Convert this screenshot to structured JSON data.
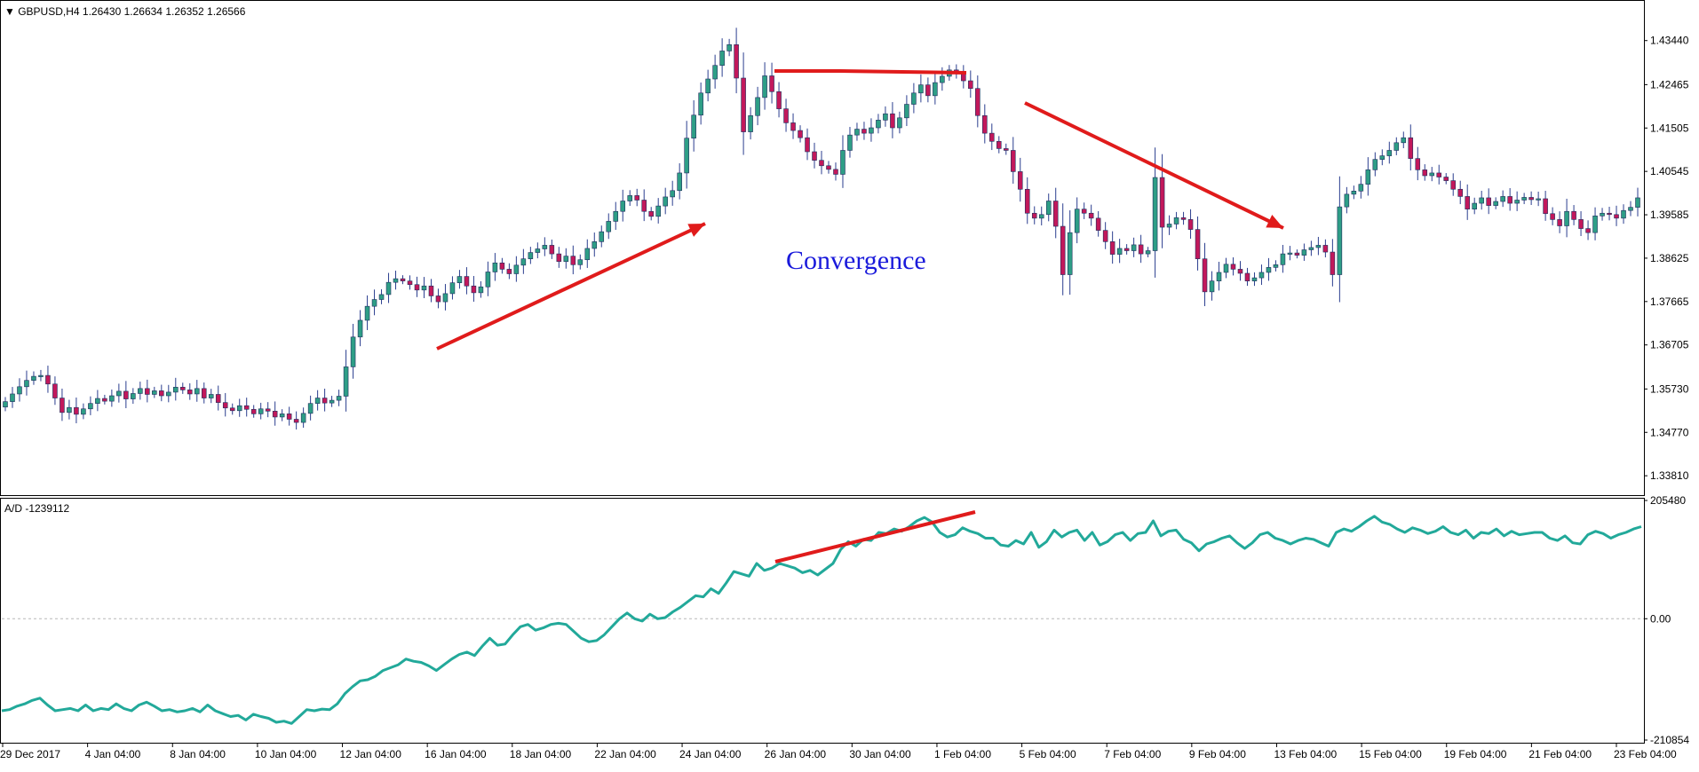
{
  "colors": {
    "bull": "#2e9e86",
    "bear": "#c2185b",
    "wick": "#2b3e8f",
    "ad_line": "#22a99a",
    "annotation": "#e01b1b",
    "convergence_text": "#1a1adb",
    "frame": "#000000",
    "zero_line": "#b8b8b8"
  },
  "chart_data": [
    {
      "type": "candlestick",
      "symbol_info": "▼ GBPUSD,H4  1.26430 1.26634 1.26352 1.26566",
      "ylim": [
        1.3342,
        1.4422
      ],
      "y_ticks": [
        "1.43440",
        "1.42465",
        "1.41505",
        "1.40545",
        "1.39585",
        "1.38625",
        "1.37665",
        "1.36705",
        "1.35730",
        "1.34770",
        "1.33810"
      ],
      "x_ticks": [
        "29 Dec 2017",
        "4 Jan 04:00",
        "8 Jan 04:00",
        "10 Jan 04:00",
        "12 Jan 04:00",
        "16 Jan 04:00",
        "18 Jan 04:00",
        "22 Jan 04:00",
        "24 Jan 04:00",
        "26 Jan 04:00",
        "30 Jan 04:00",
        "1 Feb 04:00",
        "5 Feb 04:00",
        "7 Feb 04:00",
        "9 Feb 04:00",
        "13 Feb 04:00",
        "15 Feb 04:00",
        "19 Feb 04:00",
        "21 Feb 04:00",
        "23 Feb 04:00"
      ],
      "closes": [
        1.3545,
        1.3562,
        1.3578,
        1.3592,
        1.3601,
        1.3603,
        1.3584,
        1.3553,
        1.3521,
        1.3532,
        1.3517,
        1.3529,
        1.3541,
        1.3552,
        1.3546,
        1.3558,
        1.3568,
        1.3551,
        1.3563,
        1.3574,
        1.3561,
        1.3569,
        1.3558,
        1.3566,
        1.3577,
        1.3571,
        1.3562,
        1.3574,
        1.3553,
        1.3561,
        1.3543,
        1.3531,
        1.3525,
        1.3536,
        1.3528,
        1.3518,
        1.3529,
        1.3524,
        1.3511,
        1.3518,
        1.3506,
        1.3499,
        1.3519,
        1.3541,
        1.3553,
        1.3542,
        1.3548,
        1.3557,
        1.3622,
        1.3688,
        1.3725,
        1.3756,
        1.3771,
        1.3782,
        1.3809,
        1.3817,
        1.3812,
        1.3804,
        1.3792,
        1.3801,
        1.3779,
        1.3766,
        1.3784,
        1.3808,
        1.3822,
        1.3801,
        1.3786,
        1.3799,
        1.3832,
        1.3852,
        1.3838,
        1.3828,
        1.3847,
        1.3861,
        1.3875,
        1.3883,
        1.3891,
        1.3872,
        1.3855,
        1.3867,
        1.3848,
        1.3859,
        1.3884,
        1.3899,
        1.3921,
        1.3944,
        1.3966,
        1.3989,
        1.4001,
        1.3991,
        1.3966,
        1.3955,
        1.3978,
        1.3998,
        1.4012,
        1.4051,
        1.4128,
        1.4179,
        1.4228,
        1.4259,
        1.4289,
        1.4321,
        1.4335,
        1.4261,
        1.4142,
        1.4178,
        1.4218,
        1.4266,
        1.4231,
        1.4193,
        1.4162,
        1.4145,
        1.4129,
        1.4098,
        1.4079,
        1.4067,
        1.4059,
        1.4048,
        1.4101,
        1.4135,
        1.4148,
        1.4139,
        1.4151,
        1.4168,
        1.4182,
        1.4151,
        1.4173,
        1.4203,
        1.4228,
        1.4246,
        1.4222,
        1.4251,
        1.4265,
        1.4279,
        1.4271,
        1.4255,
        1.4238,
        1.4178,
        1.4139,
        1.4121,
        1.4105,
        1.4101,
        1.4054,
        1.4015,
        1.3962,
        1.3951,
        1.3959,
        1.3989,
        1.3933,
        1.3826,
        1.3919,
        1.3971,
        1.3962,
        1.3951,
        1.3924,
        1.3899,
        1.3871,
        1.3884,
        1.3879,
        1.3892,
        1.3872,
        1.3879,
        1.4041,
        1.3931,
        1.3938,
        1.3952,
        1.3948,
        1.3926,
        1.3861,
        1.3788,
        1.3812,
        1.3831,
        1.3849,
        1.3838,
        1.3829,
        1.3812,
        1.3819,
        1.3831,
        1.3842,
        1.3848,
        1.3872,
        1.3874,
        1.3869,
        1.3881,
        1.3886,
        1.3891,
        1.3876,
        1.3826,
        1.3976,
        1.4004,
        1.4011,
        1.4026,
        1.4058,
        1.4081,
        1.4089,
        1.4101,
        1.4118,
        1.4129,
        1.4083,
        1.4058,
        1.4045,
        1.4051,
        1.4042,
        1.4034,
        1.4015,
        1.3999,
        1.3971,
        1.3984,
        1.3996,
        1.3979,
        1.3988,
        1.3999,
        1.3984,
        1.3991,
        1.3997,
        1.3992,
        1.3994,
        1.3961,
        1.3948,
        1.3934,
        1.3966,
        1.3948,
        1.3928,
        1.3919,
        1.3956,
        1.3962,
        1.3959,
        1.3951,
        1.3968,
        1.3975,
        1.3996
      ]
    },
    {
      "type": "line",
      "name": "A/D -1239112",
      "ylim": [
        -210854,
        205480
      ],
      "y_ticks": [
        "205480",
        "0.00",
        "-210854"
      ],
      "values": [
        -160000,
        -158000,
        -152000,
        -148000,
        -142000,
        -138000,
        -150000,
        -160000,
        -158000,
        -156000,
        -160000,
        -150000,
        -160000,
        -156000,
        -158000,
        -148000,
        -156000,
        -160000,
        -150000,
        -145000,
        -152000,
        -160000,
        -158000,
        -162000,
        -160000,
        -156000,
        -162000,
        -150000,
        -160000,
        -165000,
        -170000,
        -168000,
        -176000,
        -166000,
        -170000,
        -173000,
        -180000,
        -178000,
        -182000,
        -170000,
        -158000,
        -160000,
        -157000,
        -158000,
        -148000,
        -130000,
        -118000,
        -108000,
        -106000,
        -100000,
        -90000,
        -85000,
        -80000,
        -70000,
        -74000,
        -76000,
        -82000,
        -90000,
        -80000,
        -70000,
        -62000,
        -58000,
        -64000,
        -48000,
        -34000,
        -46000,
        -44000,
        -28000,
        -14000,
        -10000,
        -20000,
        -16000,
        -10000,
        -8000,
        -10000,
        -22000,
        -34000,
        -40000,
        -38000,
        -28000,
        -14000,
        0,
        10000,
        0,
        -4000,
        8000,
        0,
        2000,
        12000,
        20000,
        30000,
        40000,
        38000,
        52000,
        44000,
        62000,
        82000,
        78000,
        74000,
        96000,
        84000,
        88000,
        96000,
        92000,
        88000,
        80000,
        84000,
        76000,
        86000,
        96000,
        120000,
        134000,
        126000,
        138000,
        136000,
        150000,
        148000,
        156000,
        152000,
        160000,
        170000,
        176000,
        168000,
        150000,
        142000,
        146000,
        158000,
        152000,
        148000,
        140000,
        140000,
        128000,
        126000,
        136000,
        130000,
        150000,
        124000,
        134000,
        154000,
        142000,
        150000,
        154000,
        136000,
        150000,
        128000,
        134000,
        146000,
        150000,
        136000,
        148000,
        150000,
        170000,
        144000,
        152000,
        154000,
        138000,
        132000,
        118000,
        130000,
        134000,
        140000,
        144000,
        132000,
        122000,
        132000,
        146000,
        150000,
        140000,
        136000,
        130000,
        136000,
        140000,
        138000,
        132000,
        126000,
        150000,
        156000,
        152000,
        160000,
        170000,
        178000,
        168000,
        164000,
        156000,
        150000,
        158000,
        154000,
        148000,
        152000,
        160000,
        150000,
        146000,
        154000,
        140000,
        150000,
        148000,
        156000,
        144000,
        152000,
        146000,
        148000,
        150000,
        150000,
        140000,
        136000,
        144000,
        132000,
        130000,
        146000,
        152000,
        148000,
        140000,
        146000,
        150000,
        156000,
        160000
      ]
    }
  ],
  "annotations": {
    "convergence_label": "Convergence"
  }
}
